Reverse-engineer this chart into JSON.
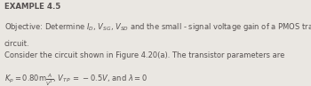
{
  "background_color": "#eae7e2",
  "title": "EXAMPLE 4.5",
  "line1": "Objective: Determine $I_D$, $V_{SG}$, $V_{SD}$ and the small - signal voltage gain of a PMOS transistor",
  "line2": "circuit.",
  "line3": "Consider the circuit shown in Figure 4.20(a). The transistor parameters are",
  "line4": "$K_p = 0.80\\mathrm{m}\\frac{A}{V^2}$, $V_{TP}\\, =\\, -0.5V$, and $\\lambda = 0$",
  "font_size_title": 6.2,
  "font_size_body": 6.0,
  "text_color": "#555050"
}
